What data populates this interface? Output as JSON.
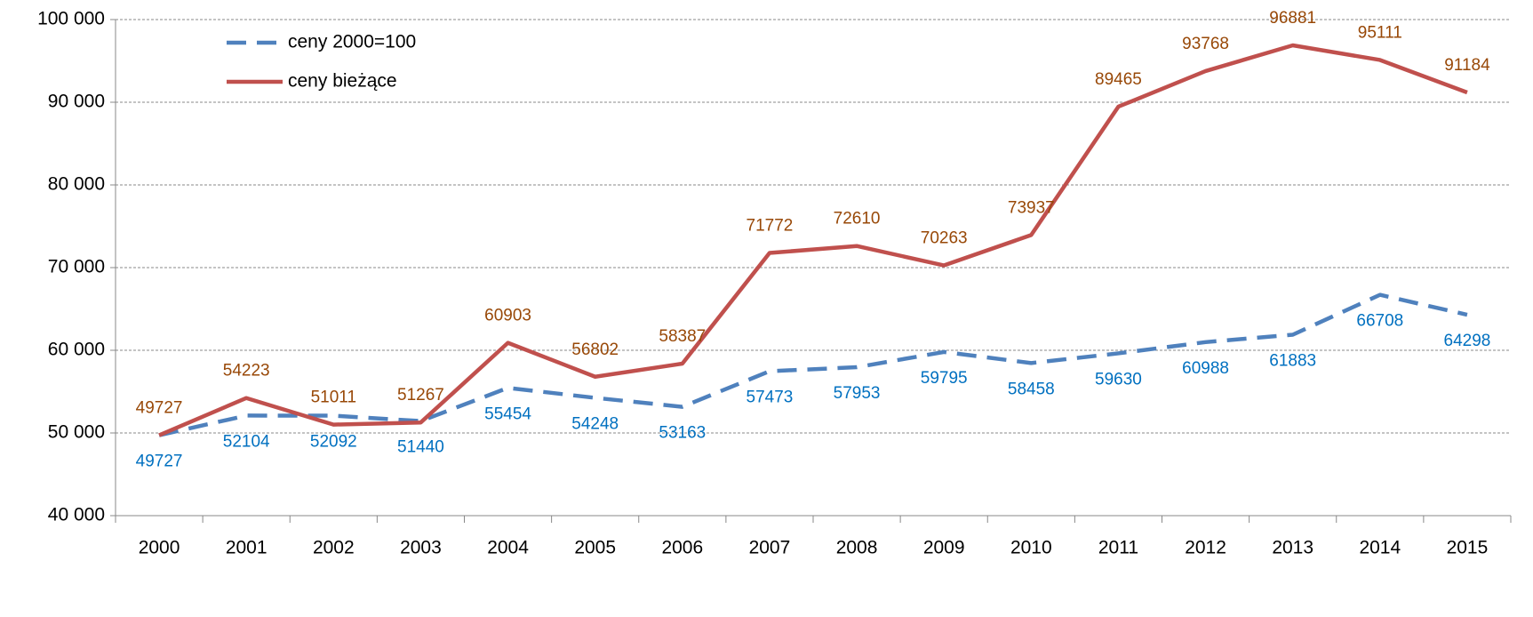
{
  "chart_data": {
    "type": "line",
    "categories": [
      "2000",
      "2001",
      "2002",
      "2003",
      "2004",
      "2005",
      "2006",
      "2007",
      "2008",
      "2009",
      "2010",
      "2011",
      "2012",
      "2013",
      "2014",
      "2015"
    ],
    "series": [
      {
        "name": "ceny 2000=100",
        "color": "#4f81bd",
        "label_color": "#0070c0",
        "line_style": "dashed",
        "values": [
          49727,
          52104,
          52092,
          51440,
          55454,
          54248,
          53163,
          57473,
          57953,
          59795,
          58458,
          59630,
          60988,
          61883,
          66708,
          64298
        ]
      },
      {
        "name": "ceny bieżące",
        "color": "#c0504d",
        "label_color": "#984807",
        "line_style": "solid",
        "values": [
          49727,
          54223,
          51011,
          51267,
          60903,
          56802,
          58387,
          71772,
          72610,
          70263,
          73937,
          89465,
          93768,
          96881,
          95111,
          91184
        ]
      }
    ],
    "ylim": [
      40000,
      100000
    ],
    "yticks": [
      {
        "value": 40000,
        "label": "40 000"
      },
      {
        "value": 50000,
        "label": "50 000"
      },
      {
        "value": 60000,
        "label": "60 000"
      },
      {
        "value": 70000,
        "label": "70 000"
      },
      {
        "value": 80000,
        "label": "80 000"
      },
      {
        "value": 90000,
        "label": "90 000"
      },
      {
        "value": 100000,
        "label": "100 000"
      }
    ],
    "grid": true,
    "legend": "top-left"
  }
}
